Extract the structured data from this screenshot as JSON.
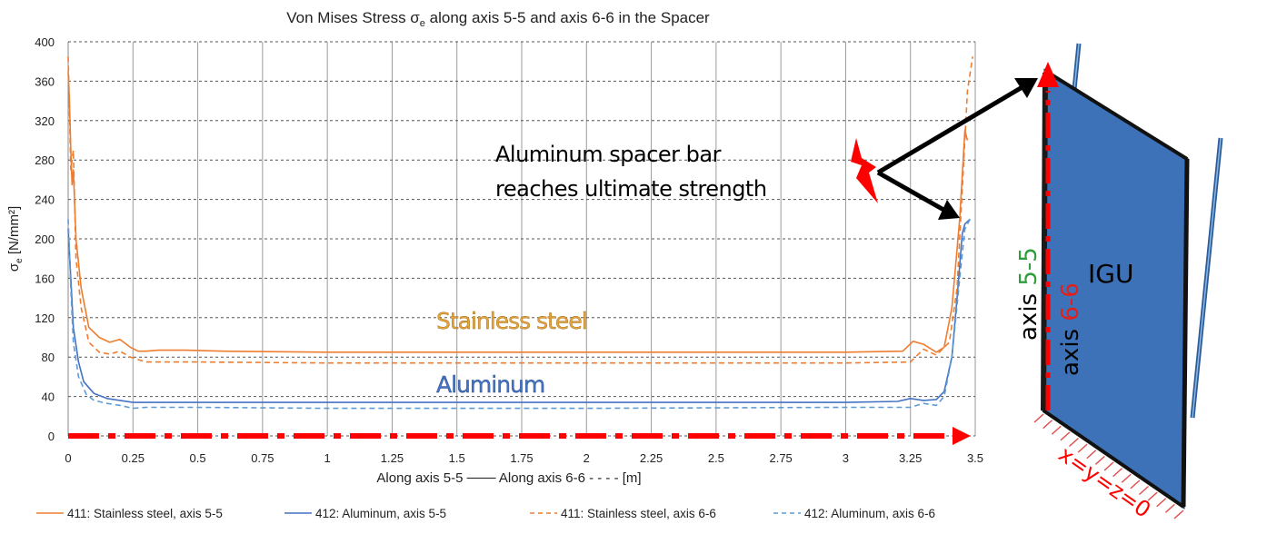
{
  "chart_data": {
    "type": "line",
    "title_parts": {
      "pre": "Von Mises Stress σ",
      "sub": "e",
      "post": " along axis 5-5  and axis 6-6 in the Spacer"
    },
    "ylabel_parts": {
      "pre": "σ",
      "sub": "e",
      "post": " [N/mm²]"
    },
    "xlabel": "Along axis 5-5 ─── Along axis 6-6 - - - - [m]",
    "xlim": [
      0,
      3.5
    ],
    "ylim": [
      0,
      400
    ],
    "xticks": [
      "0",
      "0.25",
      "0.5",
      "0.75",
      "1",
      "1.25",
      "1.5",
      "1.75",
      "2",
      "2.25",
      "2.5",
      "2.75",
      "3",
      "3.25",
      "3.5"
    ],
    "yticks": [
      "0",
      "40",
      "80",
      "120",
      "160",
      "200",
      "240",
      "280",
      "320",
      "360",
      "400"
    ],
    "grid": true,
    "legend_position": "bottom",
    "series": [
      {
        "name": "411: Stainless steel, axis 5-5",
        "color": "#ED7D31",
        "dash": "solid",
        "x": [
          0,
          0.005,
          0.01,
          0.015,
          0.02,
          0.03,
          0.05,
          0.08,
          0.12,
          0.16,
          0.2,
          0.24,
          0.27,
          0.3,
          0.35,
          0.45,
          0.6,
          1.0,
          2.0,
          3.0,
          3.22,
          3.26,
          3.3,
          3.35,
          3.38,
          3.41,
          3.44,
          3.46,
          3.47
        ],
        "y": [
          370,
          340,
          290,
          255,
          270,
          200,
          150,
          110,
          100,
          95,
          98,
          90,
          86,
          86,
          87,
          87,
          86,
          85,
          85,
          85,
          86,
          96,
          93,
          85,
          90,
          130,
          220,
          310,
          300
        ]
      },
      {
        "name": "412: Aluminum, axis 5-5",
        "color": "#4472C4",
        "dash": "solid",
        "x": [
          0,
          0.01,
          0.02,
          0.04,
          0.06,
          0.1,
          0.15,
          0.2,
          0.25,
          0.3,
          0.5,
          1.0,
          2.0,
          3.0,
          3.2,
          3.25,
          3.3,
          3.35,
          3.38,
          3.41,
          3.43,
          3.45,
          3.46,
          3.48
        ],
        "y": [
          210,
          160,
          110,
          75,
          55,
          43,
          38,
          36,
          34,
          34,
          34,
          34,
          34,
          34,
          35,
          38,
          36,
          37,
          45,
          80,
          140,
          205,
          215,
          220
        ]
      },
      {
        "name": "411: Stainless steel, axis 6-6",
        "color": "#ED7D31",
        "dash": "dashed",
        "x": [
          0,
          0.005,
          0.01,
          0.02,
          0.03,
          0.05,
          0.08,
          0.12,
          0.16,
          0.2,
          0.24,
          0.3,
          0.5,
          1.0,
          2.0,
          3.0,
          3.25,
          3.3,
          3.35,
          3.4,
          3.43,
          3.45,
          3.47,
          3.49
        ],
        "y": [
          385,
          330,
          270,
          290,
          180,
          130,
          95,
          85,
          83,
          86,
          80,
          75,
          75,
          74,
          74,
          74,
          75,
          88,
          82,
          95,
          150,
          250,
          350,
          385
        ]
      },
      {
        "name": "412: Aluminum, axis 6-6",
        "color": "#5B9BD5",
        "dash": "dashed",
        "x": [
          0,
          0.01,
          0.02,
          0.04,
          0.07,
          0.1,
          0.15,
          0.2,
          0.25,
          0.3,
          0.5,
          1.0,
          2.0,
          3.0,
          3.2,
          3.25,
          3.3,
          3.35,
          3.38,
          3.41,
          3.44,
          3.46,
          3.48
        ],
        "y": [
          220,
          150,
          95,
          60,
          42,
          36,
          33,
          31,
          28,
          29,
          29,
          28,
          28,
          29,
          29,
          29,
          33,
          31,
          40,
          80,
          160,
          210,
          220
        ]
      }
    ]
  },
  "annotations": {
    "callout_line1": "Aluminum spacer bar",
    "callout_line2": "reaches ultimate strength",
    "label_steel": "Stainless steel",
    "label_aluminum": "Aluminum",
    "steel_color": "#E6A33A",
    "aluminum_color": "#4472C4",
    "axis_red": "#FF0000"
  },
  "diagram": {
    "igu_label": "IGU",
    "axis55_prefix": "axis ",
    "axis55_num": "5-5",
    "axis66_prefix": "axis ",
    "axis66_num": "6-6",
    "origin_label": "x=y=z=0",
    "panel_color": "#3D72B8",
    "axis55_color": "#2E9E3E",
    "axis66_color": "#E0201B"
  }
}
